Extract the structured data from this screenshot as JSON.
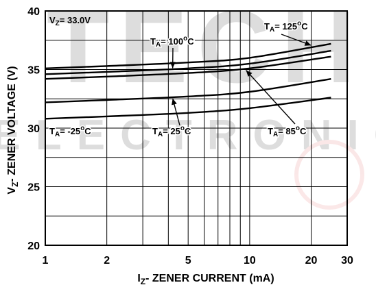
{
  "chart_data": {
    "type": "line",
    "xlabel_main": "I",
    "xlabel_sub": "Z",
    "xlabel_rest": "- ZENER CURRENT (mA)",
    "ylabel_main": "V",
    "ylabel_sub": "Z",
    "ylabel_rest": "- ZENER VOLTAGE (V)",
    "x_scale": "log",
    "xlim": [
      1,
      30
    ],
    "ylim": [
      20,
      40
    ],
    "x_ticks": [
      1,
      2,
      5,
      10,
      20,
      30
    ],
    "x_tick_labels": [
      "1",
      "2",
      "5",
      "10",
      "20",
      "30"
    ],
    "y_ticks": [
      20,
      25,
      30,
      35,
      40
    ],
    "y_tick_labels": [
      "20",
      "25",
      "30",
      "35",
      "40"
    ],
    "grid": true,
    "vz_label": {
      "main": "V",
      "sub": "Z",
      "rest": "= 33.0V"
    },
    "series": [
      {
        "temp": "-25°C",
        "x": [
          1,
          2,
          5,
          10,
          25
        ],
        "y": [
          30.8,
          31.0,
          31.3,
          31.7,
          32.6
        ]
      },
      {
        "temp": "25°C",
        "x": [
          1,
          2,
          5,
          10,
          25
        ],
        "y": [
          32.2,
          32.4,
          32.7,
          33.1,
          34.2
        ]
      },
      {
        "temp": "85°C",
        "x": [
          1,
          2,
          5,
          10,
          25
        ],
        "y": [
          34.2,
          34.4,
          34.7,
          35.1,
          36.1
        ]
      },
      {
        "temp": "100°C",
        "x": [
          1,
          2,
          5,
          10,
          25
        ],
        "y": [
          34.6,
          34.8,
          35.1,
          35.5,
          36.6
        ]
      },
      {
        "temp": "125°C",
        "x": [
          1,
          2,
          5,
          10,
          25
        ],
        "y": [
          35.1,
          35.3,
          35.6,
          36.0,
          37.2
        ]
      }
    ],
    "annotations": [
      {
        "main": "T",
        "sub": "A",
        "rest": "= -25",
        "deg": "o",
        "unit": "C"
      },
      {
        "main": "T",
        "sub": "A",
        "rest": "= 25",
        "deg": "o",
        "unit": "C"
      },
      {
        "main": "T",
        "sub": "A",
        "rest": "= 85",
        "deg": "o",
        "unit": "C"
      },
      {
        "main": "T",
        "sub": "A",
        "rest": "= 100",
        "deg": "o",
        "unit": "C"
      },
      {
        "main": "T",
        "sub": "A",
        "rest": "= 125",
        "deg": "o",
        "unit": "C"
      }
    ]
  },
  "watermark": {
    "line1": "TECH",
    "line2": "ELECTRONIC",
    "color": "#e05050"
  }
}
